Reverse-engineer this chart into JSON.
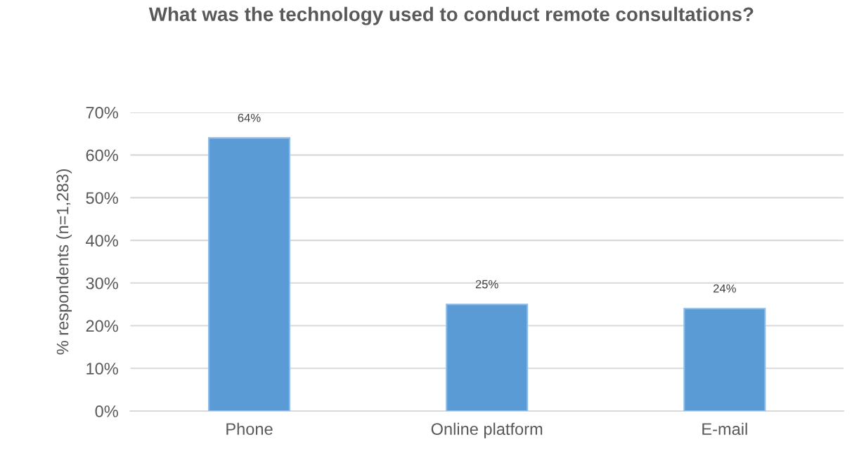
{
  "chart_data": {
    "type": "bar",
    "title": "What was the technology used to conduct remote consultations?",
    "ylabel": "% respondents (n=1,283)",
    "categories": [
      "Phone",
      "Online platform",
      "E-mail"
    ],
    "values": [
      64,
      25,
      24
    ],
    "color": "#5b9bd5",
    "value_labels": [
      "64%",
      "25%",
      "24%"
    ],
    "ylim": [
      0,
      70
    ],
    "yticks": [
      {
        "value": 0,
        "label": "0%"
      },
      {
        "value": 10,
        "label": "10%"
      },
      {
        "value": 20,
        "label": "20%"
      },
      {
        "value": 30,
        "label": "30%"
      },
      {
        "value": 40,
        "label": "40%"
      },
      {
        "value": 50,
        "label": "50%"
      },
      {
        "value": 60,
        "label": "60%"
      },
      {
        "value": 70,
        "label": "70%"
      }
    ],
    "grid": "y",
    "legend": false
  }
}
